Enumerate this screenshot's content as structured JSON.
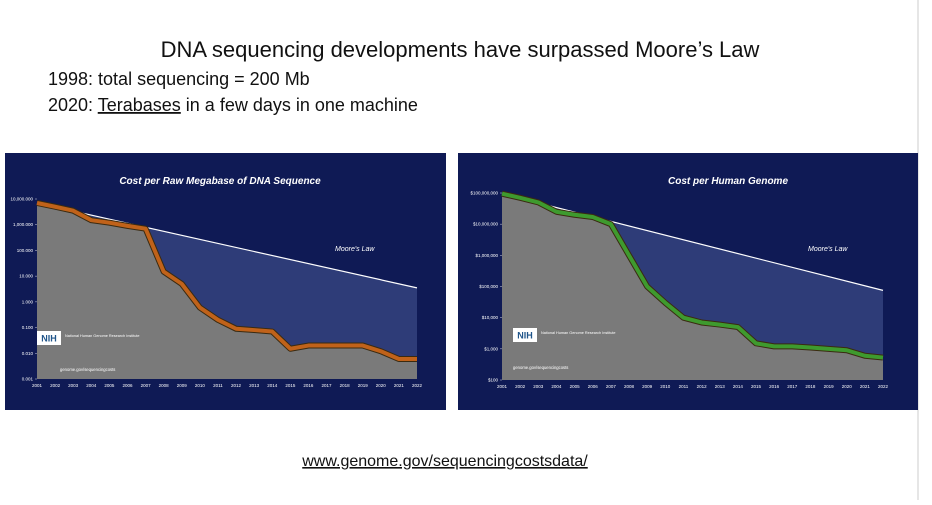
{
  "slide": {
    "title": "DNA sequencing developments have surpassed Moore’s Law",
    "line1": "1998: total sequencing = 200 Mb",
    "line2_word": "Terabases",
    "line2_prefix": "2020: ",
    "line2_rest": " in a few days in one machine",
    "url": "www.genome.gov/sequencingcostsdata/"
  },
  "chart_data": [
    {
      "type": "line",
      "title": "Cost per Raw Megabase of DNA Sequence",
      "log_scale": true,
      "x": [
        2001,
        2002,
        2003,
        2004,
        2005,
        2006,
        2007,
        2008,
        2009,
        2010,
        2011,
        2012,
        2013,
        2014,
        2015,
        2016,
        2017,
        2018,
        2019,
        2020,
        2021,
        2022
      ],
      "xlim": [
        2001,
        2022
      ],
      "ylim": [
        0.001,
        10000
      ],
      "yticks": [
        {
          "value": 10000,
          "label": "10,000.000"
        },
        {
          "value": 1000,
          "label": "1,000.000"
        },
        {
          "value": 100,
          "label": "100.000"
        },
        {
          "value": 10,
          "label": "10.000"
        },
        {
          "value": 1,
          "label": "1.000"
        },
        {
          "value": 0.1,
          "label": "0.100"
        },
        {
          "value": 0.01,
          "label": "0.010"
        },
        {
          "value": 0.001,
          "label": "0.001"
        }
      ],
      "series": [
        {
          "color": "#c0621a",
          "values": [
            7000,
            5000,
            3500,
            1500,
            1200,
            900,
            700,
            15,
            5,
            0.6,
            0.2,
            0.09,
            0.08,
            0.07,
            0.015,
            0.02,
            0.02,
            0.02,
            0.02,
            0.012,
            0.006,
            0.006
          ]
        },
        {
          "name": "Moore's Law",
          "color": "#ffffff",
          "values": [
            7000,
            null,
            null,
            null,
            null,
            null,
            null,
            null,
            null,
            null,
            null,
            null,
            null,
            null,
            null,
            null,
            null,
            null,
            null,
            null,
            null,
            3.5
          ]
        }
      ],
      "logo": "NIH",
      "logo_text": "National Human Genome Research Institute",
      "source": "genome.gov/sequencingcosts"
    },
    {
      "type": "line",
      "title": "Cost per Human Genome",
      "log_scale": true,
      "x": [
        2001,
        2002,
        2003,
        2004,
        2005,
        2006,
        2007,
        2008,
        2009,
        2010,
        2011,
        2012,
        2013,
        2014,
        2015,
        2016,
        2017,
        2018,
        2019,
        2020,
        2021,
        2022
      ],
      "xlim": [
        2001,
        2022
      ],
      "ylim": [
        100,
        100000000
      ],
      "yticks": [
        {
          "value": 100000000,
          "label": "$100,000,000"
        },
        {
          "value": 10000000,
          "label": "$10,000,000"
        },
        {
          "value": 1000000,
          "label": "$1,000,000"
        },
        {
          "value": 100000,
          "label": "$100,000"
        },
        {
          "value": 10000,
          "label": "$10,000"
        },
        {
          "value": 1000,
          "label": "$1,000"
        },
        {
          "value": 100,
          "label": "$100"
        }
      ],
      "series": [
        {
          "color": "#3e9a2e",
          "values": [
            95000000,
            70000000,
            50000000,
            25000000,
            20000000,
            17000000,
            10000000,
            1000000,
            100000,
            30000,
            10000,
            7000,
            6000,
            5000,
            1500,
            1200,
            1200,
            1100,
            1000,
            900,
            600,
            525
          ]
        },
        {
          "name": "Moore's Law",
          "color": "#ffffff",
          "values": [
            95000000,
            null,
            null,
            null,
            null,
            null,
            null,
            null,
            null,
            null,
            null,
            null,
            null,
            null,
            null,
            null,
            null,
            null,
            null,
            null,
            null,
            75000
          ]
        }
      ],
      "logo": "NIH",
      "logo_text": "National Human Genome Research Institute",
      "source": "genome.gov/sequencingcosts"
    }
  ]
}
